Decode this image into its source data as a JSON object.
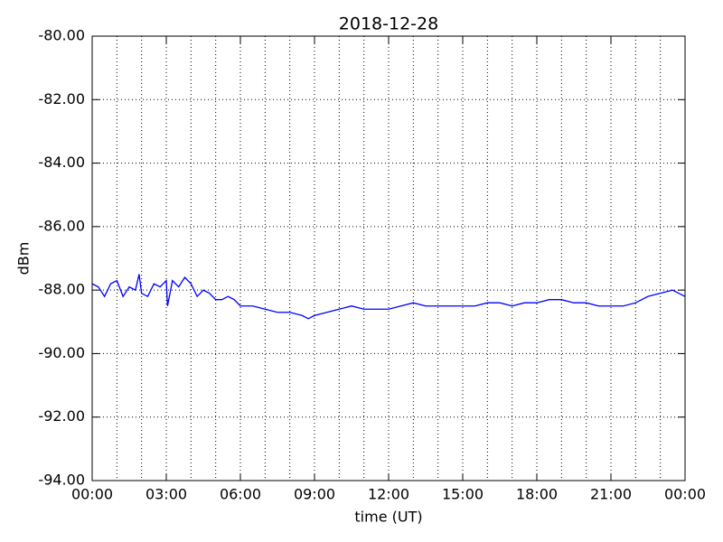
{
  "chart_data": {
    "type": "line",
    "title": "2018-12-28",
    "xlabel": "time (UT)",
    "ylabel": "dBm",
    "x": [
      0,
      0.25,
      0.5,
      0.75,
      1.0,
      1.25,
      1.5,
      1.75,
      1.9,
      2.0,
      2.25,
      2.5,
      2.75,
      3.0,
      3.05,
      3.25,
      3.5,
      3.75,
      4.0,
      4.25,
      4.5,
      4.75,
      5.0,
      5.25,
      5.5,
      5.75,
      6.0,
      6.5,
      7.0,
      7.5,
      8.0,
      8.5,
      8.75,
      9.0,
      9.5,
      10,
      10.5,
      11,
      11.5,
      12,
      12.5,
      13,
      13.5,
      14,
      14.5,
      15,
      15.5,
      16,
      16.5,
      17,
      17.5,
      18,
      18.5,
      19,
      19.5,
      20,
      20.5,
      21,
      21.5,
      22,
      22.5,
      23,
      23.5,
      24
    ],
    "series": [
      {
        "name": "dBm",
        "color": "#0000ff",
        "values": [
          -87.8,
          -87.9,
          -88.2,
          -87.8,
          -87.7,
          -88.2,
          -87.9,
          -88.0,
          -87.5,
          -88.1,
          -88.2,
          -87.8,
          -87.9,
          -87.7,
          -88.5,
          -87.7,
          -87.9,
          -87.6,
          -87.8,
          -88.2,
          -88.0,
          -88.1,
          -88.3,
          -88.3,
          -88.2,
          -88.3,
          -88.5,
          -88.5,
          -88.6,
          -88.7,
          -88.7,
          -88.8,
          -88.9,
          -88.8,
          -88.7,
          -88.6,
          -88.5,
          -88.6,
          -88.6,
          -88.6,
          -88.5,
          -88.4,
          -88.5,
          -88.5,
          -88.5,
          -88.5,
          -88.5,
          -88.4,
          -88.4,
          -88.5,
          -88.4,
          -88.4,
          -88.3,
          -88.3,
          -88.4,
          -88.4,
          -88.5,
          -88.5,
          -88.5,
          -88.4,
          -88.2,
          -88.1,
          -88.0,
          -88.2
        ]
      }
    ],
    "xlim": [
      0,
      24
    ],
    "xticks": [
      {
        "value": 0,
        "label": "00:00"
      },
      {
        "value": 3,
        "label": "03:00"
      },
      {
        "value": 6,
        "label": "06:00"
      },
      {
        "value": 9,
        "label": "09:00"
      },
      {
        "value": 12,
        "label": "12:00"
      },
      {
        "value": 15,
        "label": "15:00"
      },
      {
        "value": 18,
        "label": "18:00"
      },
      {
        "value": 21,
        "label": "21:00"
      },
      {
        "value": 24,
        "label": "00:00"
      }
    ],
    "xminorticks": [
      1,
      2,
      4,
      5,
      7,
      8,
      10,
      11,
      13,
      14,
      16,
      17,
      19,
      20,
      22,
      23
    ],
    "ylim": [
      -94,
      -80
    ],
    "yticks": [
      {
        "value": -94,
        "label": "-94.00"
      },
      {
        "value": -92,
        "label": "-92.00"
      },
      {
        "value": -90,
        "label": "-90.00"
      },
      {
        "value": -88,
        "label": "-88.00"
      },
      {
        "value": -86,
        "label": "-86.00"
      },
      {
        "value": -84,
        "label": "-84.00"
      },
      {
        "value": -82,
        "label": "-82.00"
      },
      {
        "value": -80,
        "label": "-80.00"
      }
    ],
    "grid": true
  }
}
